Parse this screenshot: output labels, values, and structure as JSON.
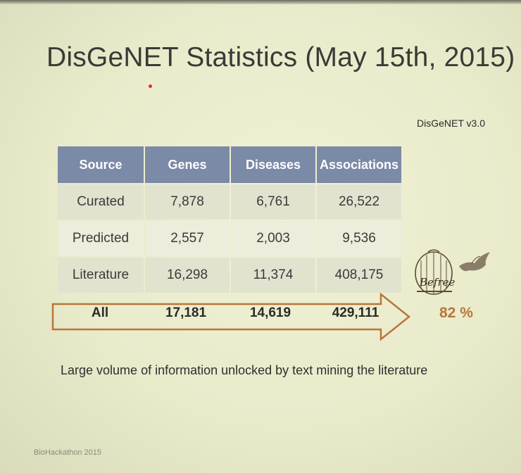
{
  "slide": {
    "title": "DisGeNET Statistics (May 15th, 2015)",
    "version_label": "DisGeNET v3.0",
    "footnote": "Large volume of information unlocked by text mining the literature",
    "footer": "BioHackathon 2015",
    "percent": "82 %",
    "logo_text": "Befree"
  },
  "table": {
    "headers": [
      "Source",
      "Genes",
      "Diseases",
      "Associations"
    ],
    "rows": [
      [
        "Curated",
        "7,878",
        "6,761",
        "26,522"
      ],
      [
        "Predicted",
        "2,557",
        "2,003",
        "9,536"
      ],
      [
        "Literature",
        "16,298",
        "11,374",
        "408,175"
      ]
    ],
    "total": [
      "All",
      "17,181",
      "14,619",
      "429,111"
    ]
  },
  "colors": {
    "header_bg": "#7b8aa6",
    "arrow_stroke": "#b8763a",
    "percent": "#b8763a"
  }
}
